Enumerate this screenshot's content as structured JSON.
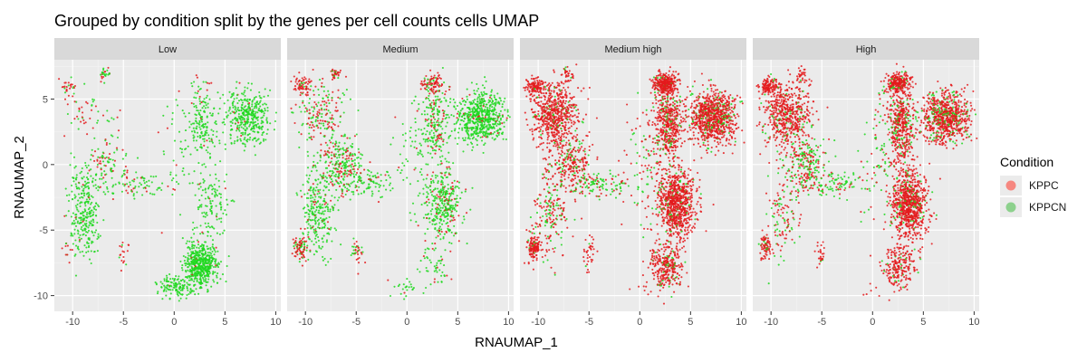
{
  "chart_data": {
    "type": "scatter",
    "title": "Grouped by condition split by the genes per cell counts cells UMAP",
    "xlabel": "RNAUMAP_1",
    "ylabel": "RNAUMAP_2",
    "xlim": [
      -11.8,
      10.5
    ],
    "ylim": [
      -11.2,
      8.0
    ],
    "x_ticks": [
      -10,
      -5,
      0,
      5,
      10
    ],
    "x_tick_labels": [
      "-10",
      "-5",
      "0",
      "5",
      "10"
    ],
    "y_ticks": [
      -10,
      -5,
      0,
      5
    ],
    "y_tick_labels": [
      "-10",
      "-5",
      "0",
      "5"
    ],
    "grid": true,
    "facets": [
      "Low",
      "Medium",
      "Medium high",
      "High"
    ],
    "legend": {
      "title": "Condition",
      "placement": "right",
      "entries": [
        {
          "label": "KPPC",
          "color": "#f8766d",
          "point_color": "#e41a1c"
        },
        {
          "label": "KPPCN",
          "color": "#7ccd7c",
          "point_color": "#1fd81f"
        }
      ]
    },
    "clusters": [
      {
        "x": 2.8,
        "y": 3.0,
        "sx": 0.7,
        "sy": 1.4
      },
      {
        "x": 7.2,
        "y": 3.6,
        "sx": 1.2,
        "sy": 1.0
      },
      {
        "x": 2.5,
        "y": 6.2,
        "sx": 0.6,
        "sy": 0.4
      },
      {
        "x": 3.6,
        "y": -3.0,
        "sx": 0.9,
        "sy": 1.4
      },
      {
        "x": 2.6,
        "y": -7.7,
        "sx": 0.8,
        "sy": 0.9
      },
      {
        "x": -8.4,
        "y": 3.8,
        "sx": 1.2,
        "sy": 1.2
      },
      {
        "x": -6.6,
        "y": 0.0,
        "sx": 1.0,
        "sy": 1.1
      },
      {
        "x": -8.8,
        "y": -3.6,
        "sx": 0.8,
        "sy": 1.8
      },
      {
        "x": -10.5,
        "y": -6.3,
        "sx": 0.35,
        "sy": 0.45
      },
      {
        "x": -5.0,
        "y": -6.8,
        "sx": 0.3,
        "sy": 0.6
      },
      {
        "x": -10.3,
        "y": 6.0,
        "sx": 0.5,
        "sy": 0.3
      },
      {
        "x": -7.0,
        "y": 6.9,
        "sx": 0.3,
        "sy": 0.3
      },
      {
        "x": -3.5,
        "y": -1.5,
        "sx": 1.5,
        "sy": 0.5
      },
      {
        "x": 0.5,
        "y": 0.5,
        "sx": 1.0,
        "sy": 2.5
      },
      {
        "x": 0.0,
        "y": -9.3,
        "sx": 0.8,
        "sy": 0.4
      }
    ],
    "panels": [
      {
        "facet": "Low",
        "points_per_cluster": [
          160,
          380,
          10,
          120,
          520,
          50,
          100,
          280,
          10,
          18,
          25,
          25,
          70,
          45,
          120
        ],
        "kppc_fraction": [
          0.05,
          0.03,
          0.8,
          0.05,
          0.01,
          0.4,
          0.35,
          0.02,
          0.9,
          0.8,
          0.8,
          0.5,
          0.15,
          0.2,
          0.02
        ]
      },
      {
        "facet": "Medium",
        "points_per_cluster": [
          200,
          600,
          90,
          340,
          50,
          180,
          260,
          260,
          80,
          35,
          70,
          35,
          90,
          70,
          25
        ],
        "kppc_fraction": [
          0.25,
          0.05,
          0.8,
          0.15,
          0.15,
          0.5,
          0.35,
          0.1,
          0.75,
          0.6,
          0.8,
          0.85,
          0.1,
          0.2,
          0.05
        ]
      },
      {
        "facet": "Medium high",
        "points_per_cluster": [
          460,
          900,
          300,
          820,
          300,
          620,
          260,
          200,
          130,
          35,
          120,
          30,
          110,
          100,
          5
        ],
        "kppc_fraction": [
          0.88,
          0.86,
          0.95,
          0.92,
          0.88,
          0.92,
          0.8,
          0.7,
          0.95,
          0.9,
          0.95,
          0.9,
          0.3,
          0.5,
          0.9
        ]
      },
      {
        "facet": "High",
        "points_per_cluster": [
          440,
          760,
          260,
          800,
          220,
          560,
          240,
          120,
          80,
          25,
          120,
          25,
          90,
          80,
          5
        ],
        "kppc_fraction": [
          0.82,
          0.8,
          0.9,
          0.9,
          0.9,
          0.88,
          0.5,
          0.6,
          0.9,
          0.9,
          0.95,
          0.85,
          0.25,
          0.4,
          0.9
        ]
      }
    ]
  }
}
